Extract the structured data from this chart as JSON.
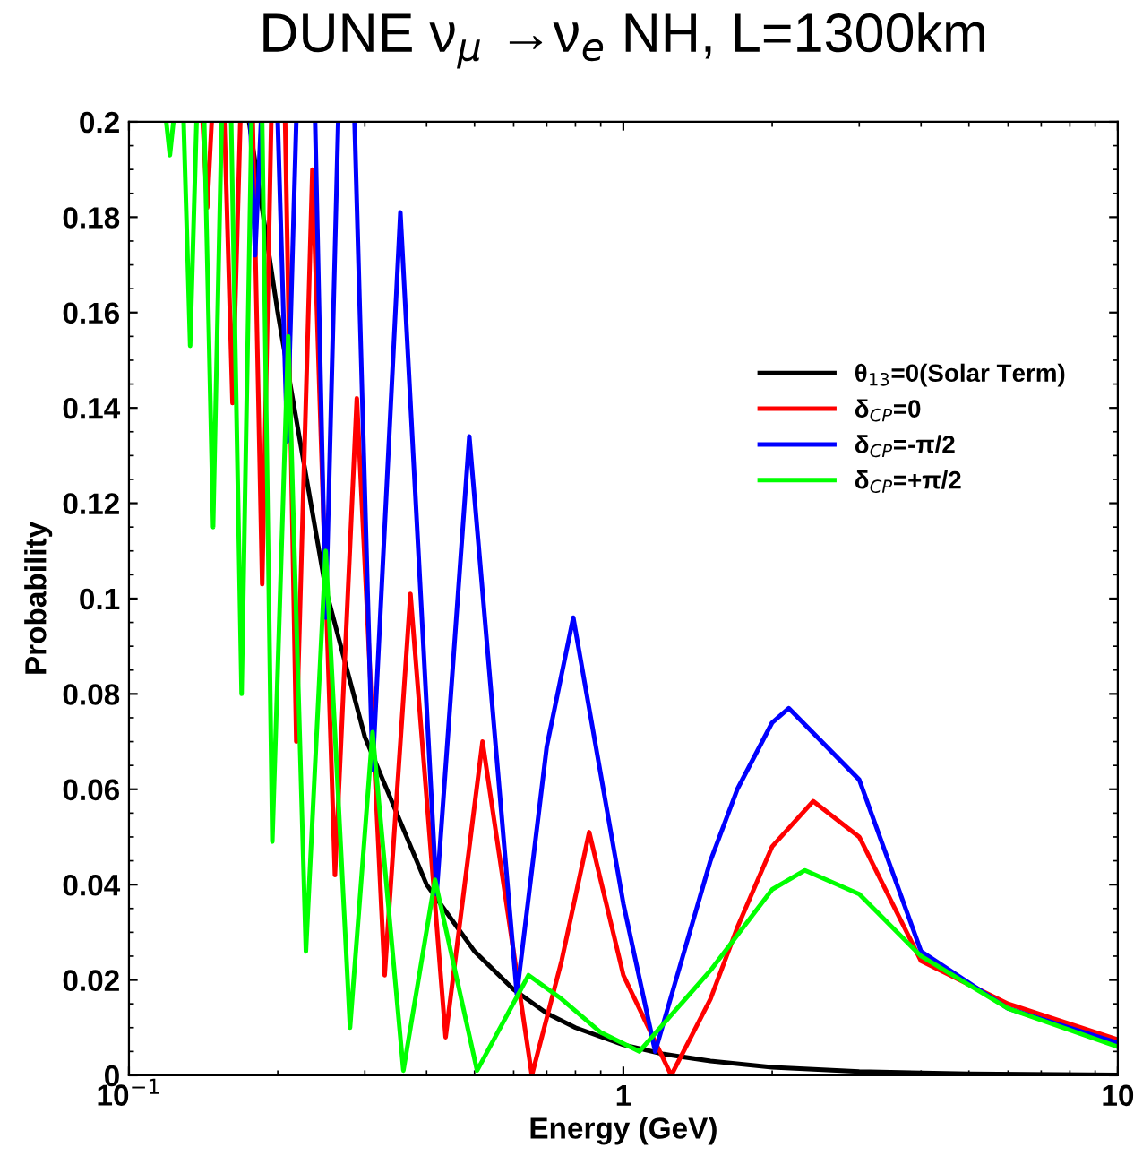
{
  "chart_data": {
    "type": "line",
    "title": "DUNE ν$_{μ}$ →ν$_{e}$ NH, L=1300km",
    "xlabel": "Energy (GeV)",
    "ylabel": "Probability",
    "log": "x",
    "xlim": [
      0.1,
      10
    ],
    "xticks": [
      {
        "value": 0.1,
        "label": "10$^{−1}$"
      },
      1,
      10
    ],
    "ylim": [
      0,
      0.2
    ],
    "yticks": [
      0,
      0.02,
      0.04,
      0.06,
      0.08,
      0.1,
      0.12,
      0.14,
      0.16,
      0.18,
      0.2
    ],
    "grid": false,
    "legend": "top right",
    "line_style": "solid",
    "marker": "none",
    "series": [
      {
        "name": "θ$_{13}$=0(Solar Term)",
        "color": "#000000",
        "x": [
          0.175,
          0.2,
          0.25,
          0.3,
          0.4,
          0.5,
          0.6,
          0.7,
          0.8,
          1.0,
          1.2,
          1.5,
          2,
          3,
          5,
          10
        ],
        "values": [
          0.2,
          0.16,
          0.102,
          0.071,
          0.04,
          0.026,
          0.018,
          0.013,
          0.01,
          0.0064,
          0.0045,
          0.003,
          0.0017,
          0.0008,
          0.0003,
          0.0001
        ]
      },
      {
        "name": "δ$_{CP}$=0",
        "color": "#ff0000",
        "x": [
          0.141,
          0.144,
          0.147,
          0.151,
          0.156,
          0.162,
          0.168,
          0.173,
          0.178,
          0.186,
          0.194,
          0.2,
          0.207,
          0.218,
          0.235,
          0.261,
          0.289,
          0.329,
          0.371,
          0.437,
          0.519,
          0.653,
          0.75,
          0.853,
          1.0,
          1.25,
          1.5,
          1.7,
          2.0,
          2.42,
          3,
          4,
          6,
          10
        ],
        "values": [
          0.2,
          0.182,
          0.2,
          null,
          0.2,
          0.141,
          0.2,
          null,
          0.2,
          0.103,
          0.2,
          null,
          0.2,
          0.07,
          0.19,
          0.042,
          0.142,
          0.021,
          0.101,
          0.008,
          0.07,
          0,
          0.024,
          0.051,
          0.021,
          0,
          0.016,
          0.031,
          0.048,
          0.0575,
          0.05,
          0.024,
          0.015,
          0.0075
        ]
      },
      {
        "name": "δ$_{CP}$=-π/2",
        "color": "#0000ff",
        "x": [
          0.176,
          0.18,
          0.185,
          0.19,
          0.2,
          0.209,
          0.218,
          0.226,
          0.238,
          0.25,
          0.265,
          0.275,
          0.286,
          0.311,
          0.354,
          0.419,
          0.488,
          0.609,
          0.7,
          0.792,
          1.0,
          1.16,
          1.5,
          1.7,
          2.0,
          2.16,
          3,
          4,
          6,
          10
        ],
        "values": [
          0.2,
          0.172,
          0.2,
          null,
          0.2,
          0.133,
          0.2,
          null,
          0.2,
          0.096,
          0.2,
          null,
          0.2,
          0.064,
          0.181,
          0.038,
          0.134,
          0.017,
          0.069,
          0.096,
          0.036,
          0.005,
          0.045,
          0.06,
          0.074,
          0.077,
          0.062,
          0.026,
          0.014,
          0.0068
        ]
      },
      {
        "name": "δ$_{CP}$=+π/2",
        "color": "#00ff00",
        "x": [
          0.119,
          0.121,
          0.123,
          0.126,
          0.129,
          0.133,
          0.137,
          0.139,
          0.142,
          0.148,
          0.154,
          0.157,
          0.161,
          0.169,
          0.177,
          0.181,
          0.186,
          0.195,
          0.21,
          0.228,
          0.25,
          0.28,
          0.311,
          0.359,
          0.416,
          0.506,
          0.643,
          0.75,
          0.9,
          1.077,
          1.5,
          2.0,
          2.33,
          3,
          4,
          6,
          10
        ],
        "values": [
          0.2,
          0.193,
          0.2,
          null,
          0.2,
          0.153,
          0.2,
          null,
          0.2,
          0.115,
          0.2,
          null,
          0.2,
          0.08,
          0.2,
          null,
          0.2,
          0.049,
          0.155,
          0.026,
          0.11,
          0.01,
          0.072,
          0.001,
          0.041,
          0.001,
          0.021,
          0.016,
          0.009,
          0.005,
          0.022,
          0.039,
          0.043,
          0.038,
          0.025,
          0.014,
          0.006
        ]
      }
    ]
  }
}
